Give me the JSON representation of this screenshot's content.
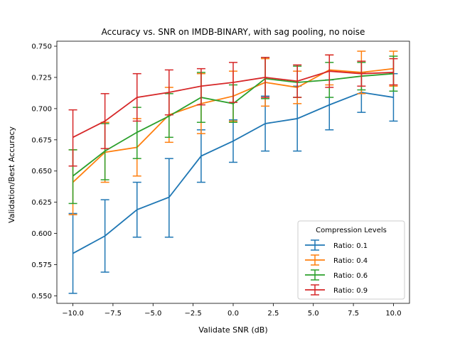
{
  "chart_data": {
    "type": "line",
    "title": "Accuracy vs. SNR on IMDB-BINARY, with sag pooling, no noise",
    "xlabel": "Validate SNR (dB)",
    "ylabel": "Validation/Best Accuracy",
    "xlim": [
      -11,
      11
    ],
    "ylim": [
      0.544,
      0.754
    ],
    "xticks": [
      -10.0,
      -7.5,
      -5.0,
      -2.5,
      0.0,
      2.5,
      5.0,
      7.5,
      10.0
    ],
    "xtick_labels": [
      "−10.0",
      "−7.5",
      "−5.0",
      "−2.5",
      "0.0",
      "2.5",
      "5.0",
      "7.5",
      "10.0"
    ],
    "yticks": [
      0.55,
      0.575,
      0.6,
      0.625,
      0.65,
      0.675,
      0.7,
      0.725,
      0.75
    ],
    "ytick_labels": [
      "0.550",
      "0.575",
      "0.600",
      "0.625",
      "0.650",
      "0.675",
      "0.700",
      "0.725",
      "0.750"
    ],
    "grid": false,
    "legend": {
      "title": "Compression Levels",
      "position": "lower-right"
    },
    "x": [
      -10,
      -8,
      -6,
      -4,
      -2,
      0,
      2,
      4,
      6,
      8,
      10
    ],
    "series": [
      {
        "name": "Ratio: 0.1",
        "color": "#1f77b4",
        "values": [
          0.584,
          0.598,
          0.619,
          0.629,
          0.662,
          0.674,
          0.688,
          0.692,
          0.703,
          0.713,
          0.709
        ],
        "lower": [
          0.552,
          0.569,
          0.597,
          0.597,
          0.641,
          0.657,
          0.666,
          0.666,
          0.683,
          0.697,
          0.69
        ],
        "upper": [
          0.616,
          0.627,
          0.641,
          0.66,
          0.683,
          0.691,
          0.71,
          0.718,
          0.723,
          0.729,
          0.728
        ]
      },
      {
        "name": "Ratio: 0.4",
        "color": "#ff7f0e",
        "values": [
          0.641,
          0.665,
          0.669,
          0.695,
          0.704,
          0.71,
          0.721,
          0.717,
          0.731,
          0.729,
          0.732
        ],
        "lower": [
          0.615,
          0.641,
          0.646,
          0.673,
          0.68,
          0.69,
          0.702,
          0.704,
          0.719,
          0.712,
          0.718
        ],
        "upper": [
          0.667,
          0.689,
          0.692,
          0.717,
          0.728,
          0.73,
          0.74,
          0.73,
          0.743,
          0.746,
          0.746
        ]
      },
      {
        "name": "Ratio: 0.6",
        "color": "#2ca02c",
        "values": [
          0.646,
          0.666,
          0.681,
          0.694,
          0.709,
          0.704,
          0.724,
          0.721,
          0.723,
          0.726,
          0.728
        ],
        "lower": [
          0.624,
          0.643,
          0.66,
          0.677,
          0.689,
          0.689,
          0.708,
          0.709,
          0.709,
          0.715,
          0.714
        ],
        "upper": [
          0.667,
          0.688,
          0.701,
          0.712,
          0.729,
          0.719,
          0.741,
          0.734,
          0.737,
          0.737,
          0.742
        ]
      },
      {
        "name": "Ratio: 0.9",
        "color": "#d62728",
        "values": [
          0.677,
          0.69,
          0.709,
          0.713,
          0.718,
          0.721,
          0.725,
          0.722,
          0.73,
          0.728,
          0.729
        ],
        "lower": [
          0.654,
          0.668,
          0.69,
          0.695,
          0.703,
          0.705,
          0.709,
          0.709,
          0.717,
          0.718,
          0.719
        ],
        "upper": [
          0.699,
          0.712,
          0.728,
          0.731,
          0.732,
          0.737,
          0.741,
          0.735,
          0.743,
          0.738,
          0.74
        ]
      }
    ]
  }
}
